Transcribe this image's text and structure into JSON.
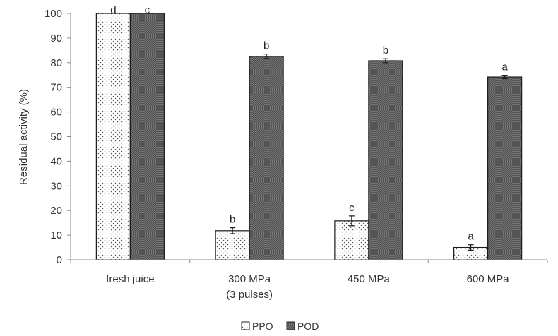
{
  "chart_data": {
    "type": "bar",
    "ylabel": "Residual activity (%)",
    "ylim": [
      0,
      100
    ],
    "yticks": [
      0,
      10,
      20,
      30,
      40,
      50,
      60,
      70,
      80,
      90,
      100
    ],
    "grid": false,
    "legend_position": "bottom",
    "categories": [
      {
        "label": "fresh juice",
        "sublabel": ""
      },
      {
        "label": "300 MPa",
        "sublabel": "(3 pulses)"
      },
      {
        "label": "450 MPa",
        "sublabel": ""
      },
      {
        "label": "600 MPa",
        "sublabel": ""
      }
    ],
    "series": [
      {
        "name": "PPO",
        "pattern": "dots",
        "values": [
          100,
          11.8,
          15.8,
          5.0
        ],
        "errors": [
          0,
          1.2,
          2.0,
          1.1
        ],
        "letters": [
          "d",
          "b",
          "c",
          "a"
        ]
      },
      {
        "name": "POD",
        "pattern": "dense-crosshatch",
        "values": [
          100,
          82.6,
          80.8,
          74.2
        ],
        "errors": [
          0,
          0.9,
          0.8,
          0.7
        ],
        "letters": [
          "c",
          "b",
          "b",
          "a"
        ]
      }
    ]
  }
}
